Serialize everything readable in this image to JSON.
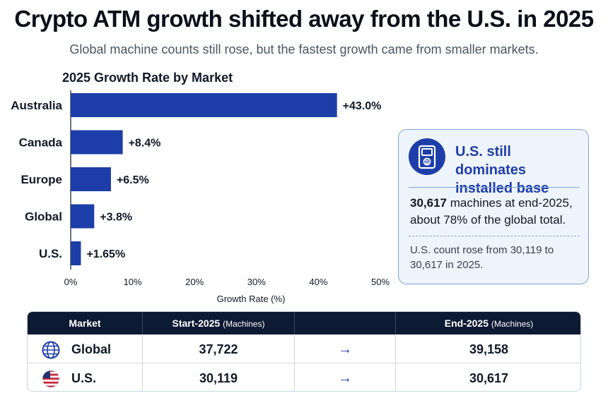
{
  "header": {
    "title": "Crypto ATM growth shifted away from the U.S. in 2025",
    "subtitle": "Global machine counts still rose, but the fastest growth came from smaller markets."
  },
  "chart_data": {
    "type": "bar",
    "orientation": "horizontal",
    "title": "2025 Growth Rate by Market",
    "xlabel": "Growth Rate (%)",
    "ylabel": "",
    "categories": [
      "Australia",
      "Canada",
      "Europe",
      "Global",
      "U.S."
    ],
    "values": [
      43.0,
      8.4,
      6.5,
      3.8,
      1.65
    ],
    "data_labels": [
      "+43.0%",
      "+8.4%",
      "+6.5%",
      "+3.8%",
      "+1.65%"
    ],
    "xlim": [
      0,
      50
    ],
    "xticks": [
      0,
      10,
      20,
      30,
      40,
      50
    ],
    "xtick_labels": [
      "0%",
      "10%",
      "20%",
      "30%",
      "40%",
      "50%"
    ],
    "bar_color": "#1d3ea8",
    "grid": false,
    "legend": "none"
  },
  "callout": {
    "icon": "atm-bitcoin-icon",
    "title": "U.S. still dominates installed base",
    "main_bold": "30,617",
    "main_rest": " machines at end-2025, about 78% of the global total.",
    "note": "U.S. count rose from 30,119 to 30,617 in 2025."
  },
  "table": {
    "headers": {
      "market": "Market",
      "start": "Start-2025",
      "start_unit": "(Machines)",
      "end": "End-2025",
      "end_unit": "(Machines)"
    },
    "rows": [
      {
        "icon": "globe-icon",
        "market": "Global",
        "start": "37,722",
        "arrow": "→",
        "end": "39,158"
      },
      {
        "icon": "us-flag-icon",
        "market": "U.S.",
        "start": "30,119",
        "arrow": "→",
        "end": "30,617"
      }
    ]
  },
  "colors": {
    "accent": "#1d3ea8",
    "table_header": "#0d1a33",
    "callout_bg": "#eef4fc",
    "callout_border": "#7ea3dc"
  }
}
